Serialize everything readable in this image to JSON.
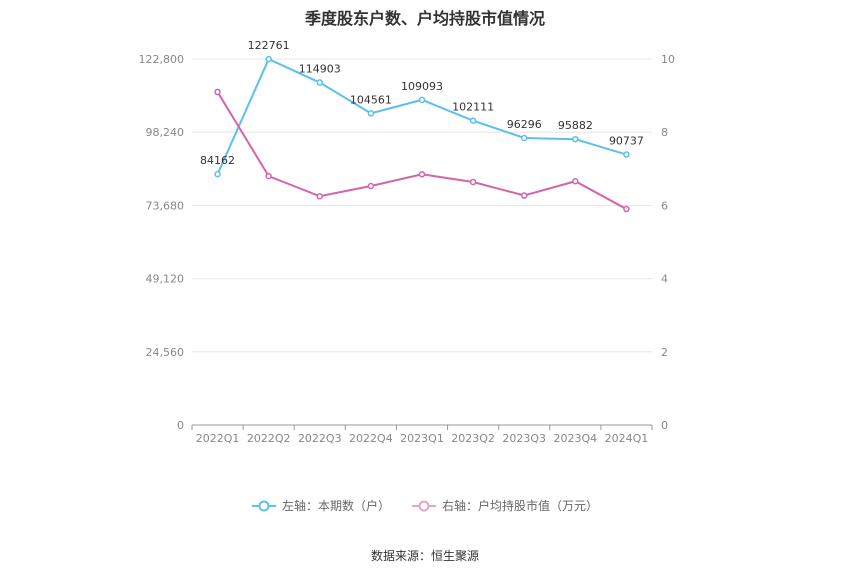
{
  "chart_data": {
    "type": "line",
    "title": "季度股东户数、户均持股市值情况",
    "categories": [
      "2022Q1",
      "2022Q2",
      "2022Q3",
      "2022Q4",
      "2023Q1",
      "2023Q2",
      "2023Q3",
      "2023Q4",
      "2024Q1"
    ],
    "left_axis": {
      "ticks": [
        "0",
        "24,560",
        "49,120",
        "73,680",
        "98,240",
        "122,800"
      ],
      "ylim": [
        0,
        122800
      ]
    },
    "right_axis": {
      "ticks": [
        "0",
        "2",
        "4",
        "6",
        "8",
        "10"
      ],
      "ylim": [
        0,
        10
      ]
    },
    "series": [
      {
        "name": "左轴：本期数（户）",
        "axis": "left",
        "color": "#5bc0eb",
        "values": [
          84162,
          122761,
          114903,
          104561,
          109093,
          102111,
          96296,
          95882,
          90737
        ],
        "labels": [
          "84162",
          "122761",
          "114903",
          "104561",
          "109093",
          "102111",
          "96296",
          "95882",
          "90737"
        ]
      },
      {
        "name": "右轴：户均持股市值（万元）",
        "axis": "right",
        "color": "#d563ab",
        "values": [
          9.1,
          6.8,
          6.25,
          6.53,
          6.85,
          6.64,
          6.27,
          6.66,
          5.9
        ]
      }
    ],
    "grid": true,
    "legend_position": "bottom"
  },
  "source": "数据来源：恒生聚源"
}
